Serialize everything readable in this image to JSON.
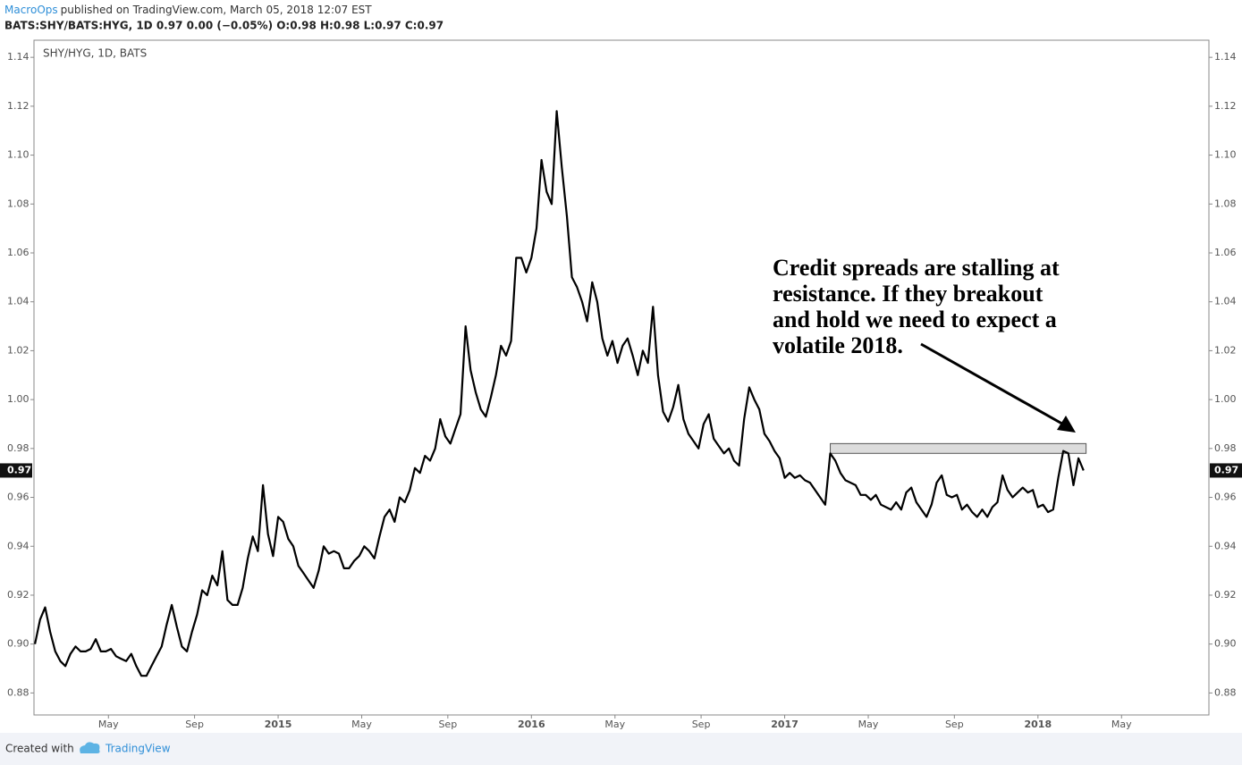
{
  "header": {
    "author": "MacroOps",
    "published": "published on TradingView.com, March 05, 2018 12:07 EST",
    "ohlc": "BATS:SHY/BATS:HYG, 1D  0.97 0.00 (−0.05%) O:0.98 H:0.98 L:0.97 C:0.97"
  },
  "footer": {
    "created_with": "Created with",
    "brand": "TradingView"
  },
  "chart_data": {
    "type": "line",
    "annotation": [
      "Credit spreads are stalling at",
      "resistance. If they breakout",
      "and hold we need to expect a",
      "volatile 2018."
    ],
    "resistance_zone": {
      "x": [
        2017.18,
        2018.19
      ],
      "y": [
        0.978,
        0.982
      ]
    },
    "last_price_label": "0.97",
    "xlim": [
      2014.036,
      2018.675
    ],
    "xticks": [
      {
        "value": 2014.33,
        "label": "May"
      },
      {
        "value": 2014.67,
        "label": "Sep"
      },
      2015,
      {
        "value": 2015.33,
        "label": "May"
      },
      {
        "value": 2015.67,
        "label": "Sep"
      },
      2016,
      {
        "value": 2016.33,
        "label": "May"
      },
      {
        "value": 2016.67,
        "label": "Sep"
      },
      2017,
      {
        "value": 2017.33,
        "label": "May"
      },
      {
        "value": 2017.67,
        "label": "Sep"
      },
      2018,
      {
        "value": 2018.33,
        "label": "May"
      }
    ],
    "ylim": [
      0.871,
      1.147
    ],
    "yticks": [
      0.88,
      {
        "value": 0.9,
        "label": "0.90"
      },
      0.92,
      0.94,
      0.96,
      0.98,
      {
        "value": 1.0,
        "label": "1.00"
      },
      1.02,
      1.04,
      1.06,
      1.08,
      {
        "value": 1.1,
        "label": "1.10"
      },
      1.12,
      1.14
    ],
    "grid": false,
    "x": [
      2014.04,
      2014.06,
      2014.08,
      2014.1,
      2014.12,
      2014.14,
      2014.16,
      2014.18,
      2014.2,
      2014.22,
      2014.24,
      2014.26,
      2014.28,
      2014.3,
      2014.32,
      2014.34,
      2014.36,
      2014.38,
      2014.4,
      2014.42,
      2014.44,
      2014.46,
      2014.48,
      2014.5,
      2014.52,
      2014.54,
      2014.56,
      2014.58,
      2014.6,
      2014.62,
      2014.64,
      2014.66,
      2014.68,
      2014.7,
      2014.72,
      2014.74,
      2014.76,
      2014.78,
      2014.8,
      2014.82,
      2014.84,
      2014.86,
      2014.88,
      2014.9,
      2014.92,
      2014.94,
      2014.96,
      2014.98,
      2015.0,
      2015.02,
      2015.04,
      2015.06,
      2015.08,
      2015.1,
      2015.12,
      2015.14,
      2015.16,
      2015.18,
      2015.2,
      2015.22,
      2015.24,
      2015.26,
      2015.28,
      2015.3,
      2015.32,
      2015.34,
      2015.36,
      2015.38,
      2015.4,
      2015.42,
      2015.44,
      2015.46,
      2015.48,
      2015.5,
      2015.52,
      2015.54,
      2015.56,
      2015.58,
      2015.6,
      2015.62,
      2015.64,
      2015.66,
      2015.68,
      2015.7,
      2015.72,
      2015.74,
      2015.76,
      2015.78,
      2015.8,
      2015.82,
      2015.84,
      2015.86,
      2015.88,
      2015.9,
      2015.92,
      2015.94,
      2015.96,
      2015.98,
      2016.0,
      2016.02,
      2016.04,
      2016.06,
      2016.08,
      2016.1,
      2016.12,
      2016.14,
      2016.16,
      2016.18,
      2016.2,
      2016.22,
      2016.24,
      2016.26,
      2016.28,
      2016.3,
      2016.32,
      2016.34,
      2016.36,
      2016.38,
      2016.4,
      2016.42,
      2016.44,
      2016.46,
      2016.48,
      2016.5,
      2016.52,
      2016.54,
      2016.56,
      2016.58,
      2016.6,
      2016.62,
      2016.64,
      2016.66,
      2016.68,
      2016.7,
      2016.72,
      2016.74,
      2016.76,
      2016.78,
      2016.8,
      2016.82,
      2016.84,
      2016.86,
      2016.88,
      2016.9,
      2016.92,
      2016.94,
      2016.96,
      2016.98,
      2017.0,
      2017.02,
      2017.04,
      2017.06,
      2017.08,
      2017.1,
      2017.12,
      2017.14,
      2017.16,
      2017.18,
      2017.2,
      2017.22,
      2017.24,
      2017.26,
      2017.28,
      2017.3,
      2017.32,
      2017.34,
      2017.36,
      2017.38,
      2017.4,
      2017.42,
      2017.44,
      2017.46,
      2017.48,
      2017.5,
      2017.52,
      2017.54,
      2017.56,
      2017.58,
      2017.6,
      2017.62,
      2017.64,
      2017.66,
      2017.68,
      2017.7,
      2017.72,
      2017.74,
      2017.76,
      2017.78,
      2017.8,
      2017.82,
      2017.84,
      2017.86,
      2017.88,
      2017.9,
      2017.92,
      2017.94,
      2017.96,
      2017.98,
      2018.0,
      2018.02,
      2018.04,
      2018.06,
      2018.08,
      2018.1,
      2018.12,
      2018.14,
      2018.16,
      2018.18
    ],
    "series": [
      {
        "name": "SHY/HYG, 1D, BATS",
        "color": "#000000",
        "values": [
          0.9,
          0.91,
          0.915,
          0.905,
          0.897,
          0.893,
          0.891,
          0.896,
          0.899,
          0.897,
          0.897,
          0.898,
          0.902,
          0.897,
          0.897,
          0.898,
          0.895,
          0.894,
          0.893,
          0.896,
          0.891,
          0.887,
          0.887,
          0.891,
          0.895,
          0.899,
          0.908,
          0.916,
          0.907,
          0.899,
          0.897,
          0.905,
          0.912,
          0.922,
          0.92,
          0.928,
          0.924,
          0.938,
          0.918,
          0.916,
          0.916,
          0.923,
          0.935,
          0.944,
          0.938,
          0.965,
          0.945,
          0.936,
          0.952,
          0.95,
          0.943,
          0.94,
          0.932,
          0.929,
          0.926,
          0.923,
          0.93,
          0.94,
          0.937,
          0.938,
          0.937,
          0.931,
          0.931,
          0.934,
          0.936,
          0.94,
          0.938,
          0.935,
          0.944,
          0.952,
          0.955,
          0.95,
          0.96,
          0.958,
          0.963,
          0.972,
          0.97,
          0.977,
          0.975,
          0.98,
          0.992,
          0.985,
          0.982,
          0.988,
          0.994,
          1.03,
          1.012,
          1.003,
          0.996,
          0.993,
          1.001,
          1.01,
          1.022,
          1.018,
          1.024,
          1.058,
          1.058,
          1.052,
          1.058,
          1.07,
          1.098,
          1.085,
          1.08,
          1.118,
          1.095,
          1.075,
          1.05,
          1.046,
          1.04,
          1.032,
          1.048,
          1.04,
          1.025,
          1.018,
          1.024,
          1.015,
          1.022,
          1.025,
          1.018,
          1.01,
          1.02,
          1.015,
          1.038,
          1.01,
          0.995,
          0.991,
          0.997,
          1.006,
          0.992,
          0.986,
          0.983,
          0.98,
          0.99,
          0.994,
          0.984,
          0.981,
          0.978,
          0.98,
          0.975,
          0.973,
          0.992,
          1.005,
          1.0,
          0.996,
          0.986,
          0.983,
          0.979,
          0.976,
          0.968,
          0.97,
          0.968,
          0.969,
          0.967,
          0.966,
          0.963,
          0.96,
          0.957,
          0.978,
          0.975,
          0.97,
          0.967,
          0.966,
          0.965,
          0.961,
          0.961,
          0.959,
          0.961,
          0.957,
          0.956,
          0.955,
          0.958,
          0.955,
          0.962,
          0.964,
          0.958,
          0.955,
          0.952,
          0.957,
          0.966,
          0.969,
          0.961,
          0.96,
          0.961,
          0.955,
          0.957,
          0.954,
          0.952,
          0.955,
          0.952,
          0.956,
          0.958,
          0.969,
          0.963,
          0.96,
          0.962,
          0.964,
          0.962,
          0.963,
          0.956,
          0.957,
          0.954,
          0.955,
          0.968,
          0.979,
          0.978,
          0.965,
          0.976,
          0.971
        ]
      }
    ]
  }
}
